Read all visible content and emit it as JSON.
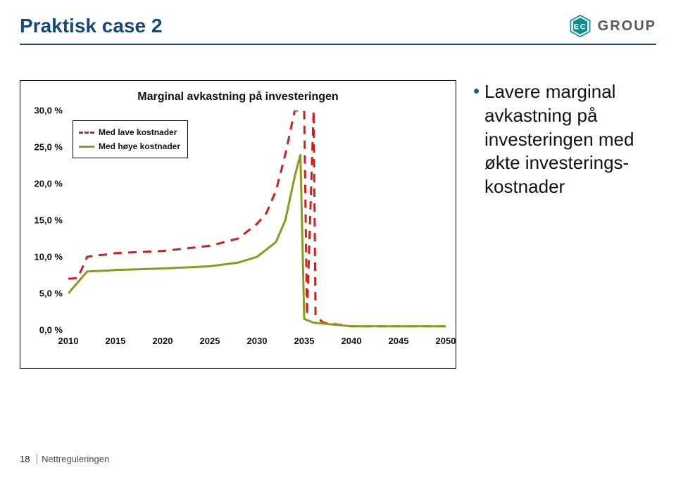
{
  "header": {
    "title": "Praktisk case 2",
    "title_color": "#14497a",
    "rule_color": "#14497a",
    "logo_text": "GROUP",
    "logo_color": "#0b8f8f",
    "logo_text_color": "#5a5a5a"
  },
  "chart": {
    "type": "line",
    "title": "Marginal avkastning på investeringen",
    "title_fontsize": 16,
    "background_color": "#ffffff",
    "border_color": "#000000",
    "x": {
      "min": 2010,
      "max": 2050,
      "tick_step": 5,
      "ticks": [
        2010,
        2015,
        2020,
        2025,
        2030,
        2035,
        2040,
        2045,
        2050
      ],
      "label_fontsize": 13
    },
    "y": {
      "min": 0,
      "max": 30,
      "tick_step": 5,
      "ticks": [
        0,
        5,
        10,
        15,
        20,
        25,
        30
      ],
      "tick_labels": [
        "0,0 %",
        "5,0 %",
        "10,0 %",
        "15,0 %",
        "20,0 %",
        "25,0 %",
        "30,0 %"
      ],
      "label_fontsize": 13
    },
    "legend": {
      "position": "upper-left",
      "items": [
        {
          "label": "Med lave kostnader",
          "color": "#d11f1f",
          "dash": true,
          "width": 3
        },
        {
          "label": "Med høye kostnader",
          "color": "#8a9a1b",
          "dash": false,
          "width": 3
        }
      ]
    },
    "series": [
      {
        "name": "Med lave kostnader",
        "color": "#d11f1f",
        "dash": true,
        "width": 3,
        "points": [
          [
            2010,
            7.0
          ],
          [
            2011,
            7.1
          ],
          [
            2012,
            10.0
          ],
          [
            2013,
            10.2
          ],
          [
            2014,
            10.3
          ],
          [
            2015,
            10.5
          ],
          [
            2020,
            10.8
          ],
          [
            2025,
            11.5
          ],
          [
            2028,
            12.5
          ],
          [
            2030,
            14.5
          ],
          [
            2031,
            16.0
          ],
          [
            2032,
            19.0
          ],
          [
            2033,
            24.0
          ],
          [
            2034,
            30.0
          ],
          [
            2035,
            30.0
          ],
          [
            2035.3,
            2.0
          ],
          [
            2036,
            30.0
          ],
          [
            2036.2,
            2.0
          ],
          [
            2037,
            1.0
          ],
          [
            2040,
            0.5
          ],
          [
            2045,
            0.5
          ],
          [
            2050,
            0.5
          ]
        ]
      },
      {
        "name": "Med høye kostnader",
        "color": "#8a9a1b",
        "dash": false,
        "width": 3,
        "points": [
          [
            2010,
            5.0
          ],
          [
            2012,
            8.0
          ],
          [
            2014,
            8.1
          ],
          [
            2015,
            8.2
          ],
          [
            2020,
            8.4
          ],
          [
            2025,
            8.7
          ],
          [
            2028,
            9.2
          ],
          [
            2030,
            10.0
          ],
          [
            2032,
            12.0
          ],
          [
            2033,
            15.0
          ],
          [
            2034,
            21.0
          ],
          [
            2034.6,
            24.0
          ],
          [
            2035,
            1.5
          ],
          [
            2036,
            1.0
          ],
          [
            2040,
            0.5
          ],
          [
            2045,
            0.5
          ],
          [
            2050,
            0.5
          ]
        ]
      }
    ]
  },
  "bullets": {
    "dot_color": "#1e5a8e",
    "items": [
      "Lavere marginal avkastning på investeringen med økte investerings-kostnader"
    ]
  },
  "footer": {
    "page_number": "18",
    "label": "Nettreguleringen"
  }
}
